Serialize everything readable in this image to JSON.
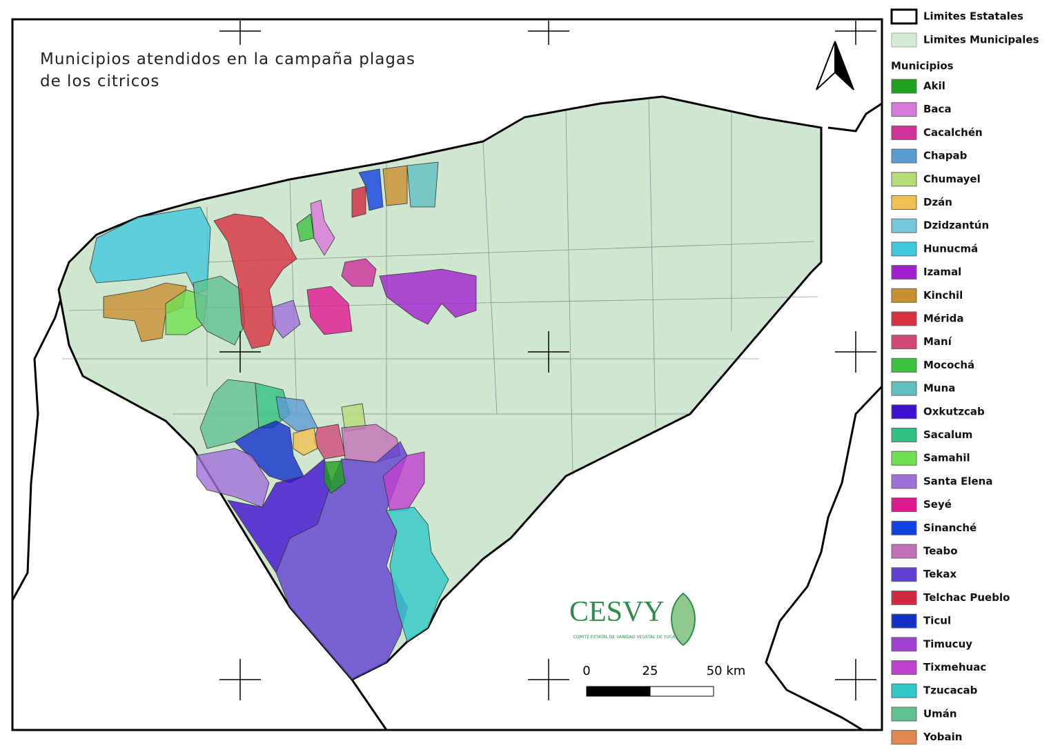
{
  "title_lines": [
    "Municipios atendidos en la campaña plagas",
    "de los citricos"
  ],
  "legend": {
    "boundaries": [
      {
        "label": "Limites Estatales"
      },
      {
        "label": "Limites Municipales"
      }
    ],
    "heading": "Municipios",
    "items": [
      {
        "label": "Akil",
        "color": "#1fa01f"
      },
      {
        "label": "Baca",
        "color": "#d878d8"
      },
      {
        "label": "Cacalchén",
        "color": "#d0309a"
      },
      {
        "label": "Chapab",
        "color": "#5b9bd5"
      },
      {
        "label": "Chumayel",
        "color": "#b5dc75"
      },
      {
        "label": "Dzán",
        "color": "#f0c050"
      },
      {
        "label": "Dzidzantún",
        "color": "#78c8dc"
      },
      {
        "label": "Hunucmá",
        "color": "#40c8dc"
      },
      {
        "label": "Izamal",
        "color": "#a020d0"
      },
      {
        "label": "Kinchil",
        "color": "#c89030"
      },
      {
        "label": "Mérida",
        "color": "#d83040"
      },
      {
        "label": "Maní",
        "color": "#d04878"
      },
      {
        "label": "Mocochá",
        "color": "#40c040"
      },
      {
        "label": "Muna",
        "color": "#60c0c0"
      },
      {
        "label": "Oxkutzcab",
        "color": "#4010d0"
      },
      {
        "label": "Sacalum",
        "color": "#30c080"
      },
      {
        "label": "Samahil",
        "color": "#70e050"
      },
      {
        "label": "Santa Elena",
        "color": "#a070d8"
      },
      {
        "label": "Seyé",
        "color": "#e01890"
      },
      {
        "label": "Sinanché",
        "color": "#1040e0"
      },
      {
        "label": "Teabo",
        "color": "#c070b8"
      },
      {
        "label": "Tekax",
        "color": "#6040d0"
      },
      {
        "label": "Telchac Pueblo",
        "color": "#d02840"
      },
      {
        "label": "Ticul",
        "color": "#1030c8"
      },
      {
        "label": "Timucuy",
        "color": "#a040d0"
      },
      {
        "label": "Tixmehuac",
        "color": "#c040d0"
      },
      {
        "label": "Tzucacab",
        "color": "#30c8c8"
      },
      {
        "label": "Umán",
        "color": "#60c090"
      },
      {
        "label": "Yobain",
        "color": "#e08850"
      }
    ]
  },
  "scale_bar": {
    "labels": [
      "0",
      "25",
      "50 km"
    ]
  },
  "logo": {
    "text": "CESVY",
    "subtitle": "COMITÉ ESTATAL DE SANIDAD VEGETAL DE YUCATÁN"
  }
}
